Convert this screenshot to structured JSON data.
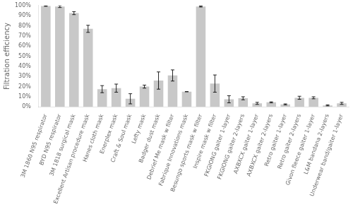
{
  "chart_data": {
    "type": "bar",
    "ylabel": "Filtration efficiency",
    "categories": [
      "3M 1860 N95 respirator",
      "BYD N95 respirator",
      "3M 1818 surgical mask",
      "Excellent Artisan procedure mask",
      "Hanes cloth mask",
      "Enerplex mask",
      "Craft & Soul mask",
      "Lefty mask",
      "Badger dust mask",
      "Debrief Me mask w filter",
      "Fabrique Innovations mask",
      "Besungo sports mask w filter",
      "Inspire mask w filter",
      "FKGIONG gaiter 1-layer",
      "FKGIONG gaiter 2-layers",
      "AXBXCX gaiter 1-layer",
      "AXBXCX gaiter 2-layers",
      "Retro gaiter 1-layer",
      "Retro gaiter 2-layers",
      "Givon fleece gaiter 1-layer",
      "L&M bandana 2-layers",
      "Underwear band/gaiter 1-layer"
    ],
    "values": [
      99.5,
      99.0,
      92.5,
      77.0,
      17.5,
      18.5,
      8.0,
      20.0,
      26.0,
      31.0,
      15.0,
      99.0,
      23.0,
      7.5,
      8.5,
      3.5,
      4.5,
      2.5,
      9.0,
      9.0,
      1.5,
      3.5
    ],
    "errors": [
      0.3,
      1.0,
      1.5,
      3.5,
      3.5,
      4.0,
      5.0,
      1.5,
      8.5,
      5.5,
      0.0,
      0.5,
      8.5,
      3.5,
      1.5,
      1.0,
      0.5,
      0.5,
      1.5,
      1.0,
      0.5,
      1.0
    ],
    "color": "#c8c8c8",
    "ylim": [
      0,
      100
    ],
    "yticks": [
      {
        "value": 0,
        "label": "0%"
      },
      {
        "value": 10,
        "label": "10%"
      },
      {
        "value": 20,
        "label": "20%"
      },
      {
        "value": 30,
        "label": "30%"
      },
      {
        "value": 40,
        "label": "40%"
      },
      {
        "value": 50,
        "label": "50%"
      },
      {
        "value": 60,
        "label": "60%"
      },
      {
        "value": 70,
        "label": "70%"
      },
      {
        "value": 80,
        "label": "80%"
      },
      {
        "value": 90,
        "label": "90%"
      },
      {
        "value": 100,
        "label": "100%"
      }
    ],
    "grid": false
  }
}
